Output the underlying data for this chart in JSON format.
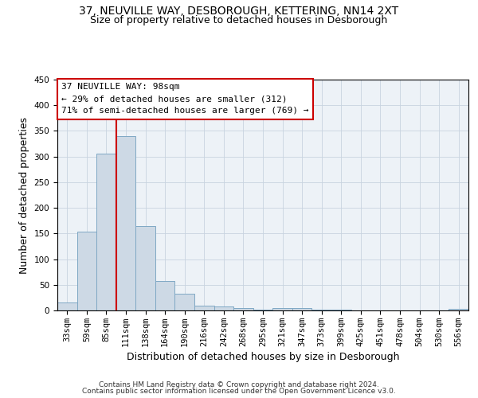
{
  "title": "37, NEUVILLE WAY, DESBOROUGH, KETTERING, NN14 2XT",
  "subtitle": "Size of property relative to detached houses in Desborough",
  "xlabel": "Distribution of detached houses by size in Desborough",
  "ylabel": "Number of detached properties",
  "footer1": "Contains HM Land Registry data © Crown copyright and database right 2024.",
  "footer2": "Contains public sector information licensed under the Open Government Licence v3.0.",
  "annotation_line1": "37 NEUVILLE WAY: 98sqm",
  "annotation_line2": "← 29% of detached houses are smaller (312)",
  "annotation_line3": "71% of semi-detached houses are larger (769) →",
  "bar_color": "#cdd9e5",
  "bar_edge_color": "#7fa8c4",
  "line_color": "#cc0000",
  "categories": [
    "33sqm",
    "59sqm",
    "85sqm",
    "111sqm",
    "138sqm",
    "164sqm",
    "190sqm",
    "216sqm",
    "242sqm",
    "268sqm",
    "295sqm",
    "321sqm",
    "347sqm",
    "373sqm",
    "399sqm",
    "425sqm",
    "451sqm",
    "478sqm",
    "504sqm",
    "530sqm",
    "556sqm"
  ],
  "values": [
    15,
    153,
    305,
    340,
    165,
    57,
    33,
    9,
    7,
    5,
    2,
    4,
    4,
    1,
    1,
    0,
    0,
    0,
    0,
    0,
    3
  ],
  "ylim": [
    0,
    450
  ],
  "yticks": [
    0,
    50,
    100,
    150,
    200,
    250,
    300,
    350,
    400,
    450
  ],
  "red_line_x": 2.5,
  "title_fontsize": 10,
  "subtitle_fontsize": 9,
  "tick_fontsize": 7.5,
  "label_fontsize": 9,
  "footer_fontsize": 6.5,
  "annotation_fontsize": 8
}
